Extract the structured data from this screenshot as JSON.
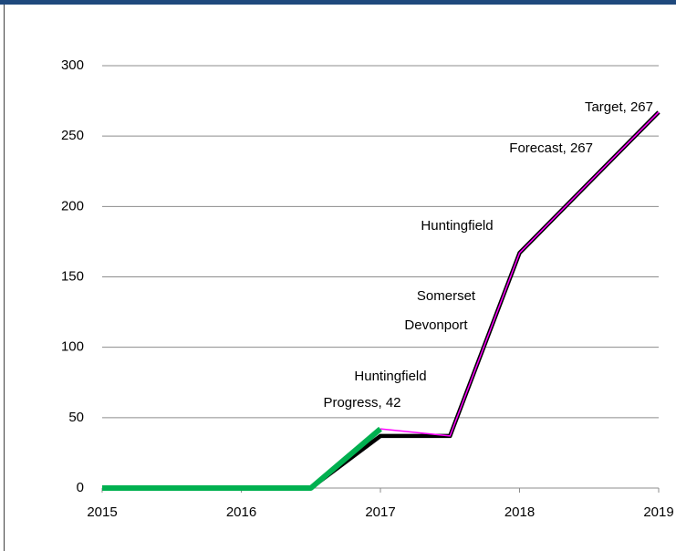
{
  "chart_data": {
    "type": "line",
    "xlim": [
      2015,
      2019
    ],
    "xticks": [
      2015,
      2016,
      2017,
      2018,
      2019
    ],
    "ylim": [
      0,
      300
    ],
    "yticks": [
      0,
      50,
      100,
      150,
      200,
      250,
      300
    ],
    "grid": true,
    "series": [
      {
        "name": "Target",
        "color": "#000000",
        "x": [
          2015,
          2016.5,
          2017,
          2017.5,
          2018,
          2019
        ],
        "values": [
          0,
          0,
          37,
          37,
          167,
          267
        ],
        "value_labels": [
          null,
          null,
          null,
          null,
          null,
          "Target, 267"
        ]
      },
      {
        "name": "Forecast",
        "color": "#ff00ff",
        "x": [
          2017,
          2017.5,
          2018,
          2019
        ],
        "values": [
          42,
          37,
          167,
          267
        ],
        "value_labels": [
          null,
          null,
          null,
          "Forecast, 267"
        ]
      },
      {
        "name": "Progress",
        "color": "#00b050",
        "x": [
          2015,
          2016.5,
          2017
        ],
        "values": [
          0,
          0,
          42
        ],
        "value_labels": [
          null,
          null,
          "Progress, 42"
        ]
      }
    ],
    "annotations": [
      "Huntingfield",
      "Devonport",
      "Somerset",
      "Huntingfield"
    ]
  }
}
